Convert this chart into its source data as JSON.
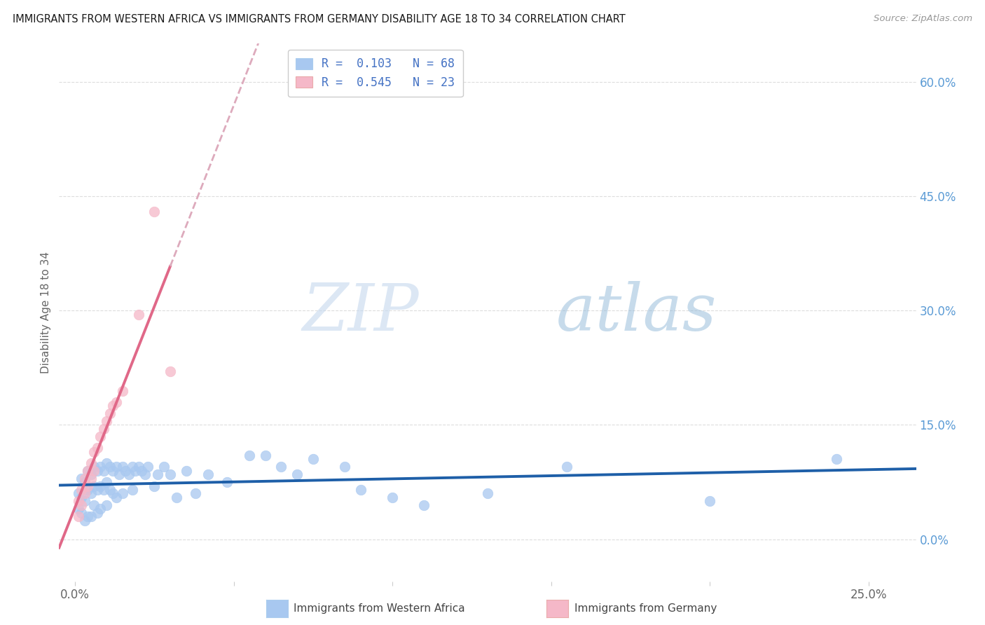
{
  "title": "IMMIGRANTS FROM WESTERN AFRICA VS IMMIGRANTS FROM GERMANY DISABILITY AGE 18 TO 34 CORRELATION CHART",
  "source": "Source: ZipAtlas.com",
  "ylabel_label": "Disability Age 18 to 34",
  "y_ticks_right": [
    0.0,
    0.15,
    0.3,
    0.45,
    0.6
  ],
  "y_tick_labels_right": [
    "0.0%",
    "15.0%",
    "30.0%",
    "45.0%",
    "60.0%"
  ],
  "x_ticks": [
    0.0,
    0.05,
    0.1,
    0.15,
    0.2,
    0.25
  ],
  "xlim": [
    -0.005,
    0.265
  ],
  "ylim": [
    -0.055,
    0.65
  ],
  "legend_r1": "0.103",
  "legend_n1": "68",
  "legend_r2": "0.545",
  "legend_n2": "23",
  "legend1_label": "Immigrants from Western Africa",
  "legend2_label": "Immigrants from Germany",
  "color_blue": "#A8C8F0",
  "color_pink": "#F5B8C8",
  "color_blue_line": "#1E5FA8",
  "color_pink_line": "#E06888",
  "color_pink_dashed": "#DDAABC",
  "watermark_zip": "ZIP",
  "watermark_atlas": "atlas",
  "blue_scatter_x": [
    0.001,
    0.001,
    0.002,
    0.002,
    0.002,
    0.003,
    0.003,
    0.003,
    0.004,
    0.004,
    0.004,
    0.005,
    0.005,
    0.005,
    0.006,
    0.006,
    0.006,
    0.007,
    0.007,
    0.007,
    0.008,
    0.008,
    0.008,
    0.009,
    0.009,
    0.01,
    0.01,
    0.01,
    0.011,
    0.011,
    0.012,
    0.012,
    0.013,
    0.013,
    0.014,
    0.015,
    0.015,
    0.016,
    0.017,
    0.018,
    0.018,
    0.019,
    0.02,
    0.021,
    0.022,
    0.023,
    0.025,
    0.026,
    0.028,
    0.03,
    0.032,
    0.035,
    0.038,
    0.042,
    0.048,
    0.055,
    0.06,
    0.065,
    0.07,
    0.075,
    0.085,
    0.09,
    0.1,
    0.11,
    0.13,
    0.155,
    0.2,
    0.24
  ],
  "blue_scatter_y": [
    0.06,
    0.04,
    0.08,
    0.055,
    0.035,
    0.075,
    0.05,
    0.025,
    0.09,
    0.065,
    0.03,
    0.085,
    0.06,
    0.03,
    0.095,
    0.07,
    0.045,
    0.09,
    0.065,
    0.035,
    0.095,
    0.07,
    0.04,
    0.09,
    0.065,
    0.1,
    0.075,
    0.045,
    0.095,
    0.065,
    0.09,
    0.06,
    0.095,
    0.055,
    0.085,
    0.095,
    0.06,
    0.09,
    0.085,
    0.095,
    0.065,
    0.09,
    0.095,
    0.09,
    0.085,
    0.095,
    0.07,
    0.085,
    0.095,
    0.085,
    0.055,
    0.09,
    0.06,
    0.085,
    0.075,
    0.11,
    0.11,
    0.095,
    0.085,
    0.105,
    0.095,
    0.065,
    0.055,
    0.045,
    0.06,
    0.095,
    0.05,
    0.105
  ],
  "pink_scatter_x": [
    0.001,
    0.001,
    0.002,
    0.002,
    0.003,
    0.003,
    0.004,
    0.004,
    0.005,
    0.005,
    0.006,
    0.006,
    0.007,
    0.008,
    0.009,
    0.01,
    0.011,
    0.012,
    0.013,
    0.015,
    0.02,
    0.025,
    0.03
  ],
  "pink_scatter_y": [
    0.05,
    0.03,
    0.065,
    0.045,
    0.08,
    0.06,
    0.09,
    0.07,
    0.1,
    0.08,
    0.115,
    0.09,
    0.12,
    0.135,
    0.145,
    0.155,
    0.165,
    0.175,
    0.18,
    0.195,
    0.295,
    0.43,
    0.22
  ]
}
